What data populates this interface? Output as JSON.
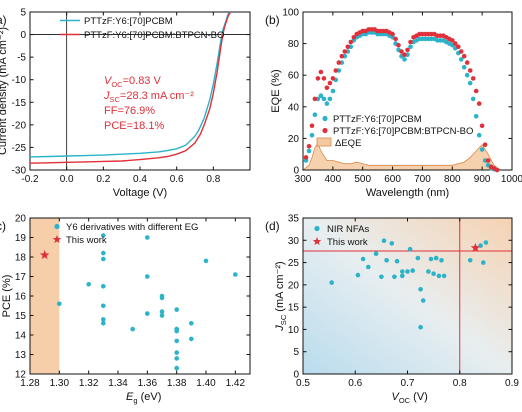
{
  "chart_data": [
    {
      "panel_label": "(a)",
      "type": "line",
      "xlabel": "Voltage (V)",
      "ylabel": "Current density (mA cm⁻²)",
      "xlim": [
        -0.2,
        1.0
      ],
      "ylim": [
        -30,
        5
      ],
      "xticks": [
        "-0.2",
        "0.0",
        "0.2",
        "0.4",
        "0.6",
        "0.8"
      ],
      "xtick_values": [
        -0.2,
        0.0,
        0.2,
        0.4,
        0.6,
        0.8
      ],
      "yticks": [
        "5",
        "0",
        "-5",
        "-10",
        "-15",
        "-20",
        "-25",
        "-30"
      ],
      "ytick_values": [
        5,
        0,
        -5,
        -10,
        -15,
        -20,
        -25,
        -30
      ],
      "legend_position": "top-right",
      "series": [
        {
          "name": "PTTzF:Y6:[70]PCBM",
          "color": "#2ab3c9",
          "x": [
            -0.2,
            -0.1,
            0.0,
            0.1,
            0.2,
            0.3,
            0.4,
            0.5,
            0.55,
            0.6,
            0.65,
            0.7,
            0.72,
            0.75,
            0.78,
            0.8,
            0.82,
            0.84,
            0.85,
            0.87,
            0.88,
            0.9
          ],
          "y": [
            -27.1,
            -27.0,
            -26.9,
            -26.8,
            -26.7,
            -26.5,
            -26.3,
            -26.0,
            -25.7,
            -25.3,
            -24.5,
            -22.5,
            -21.2,
            -18.5,
            -14.5,
            -11.0,
            -6.5,
            -1.5,
            0.8,
            3.2,
            4.5,
            5.5
          ]
        },
        {
          "name": "PTTzF:Y6:[70]PCBM:BTPCN-BO",
          "color": "#e0303a",
          "x": [
            -0.2,
            -0.1,
            0.0,
            0.1,
            0.2,
            0.3,
            0.4,
            0.5,
            0.55,
            0.6,
            0.65,
            0.7,
            0.73,
            0.75,
            0.78,
            0.8,
            0.82,
            0.84,
            0.85,
            0.86,
            0.88,
            0.9
          ],
          "y": [
            -28.5,
            -28.4,
            -28.3,
            -28.2,
            -28.1,
            -28.0,
            -27.7,
            -27.3,
            -27.0,
            -26.5,
            -25.7,
            -24.0,
            -22.0,
            -20.0,
            -16.5,
            -13.0,
            -8.5,
            -3.0,
            -0.5,
            1.5,
            4.0,
            5.5
          ]
        }
      ],
      "annotations": [
        {
          "label": "V",
          "sub": "OC",
          "value": "=0.83 V"
        },
        {
          "label": "J",
          "sub": "SC",
          "value": "=28.3 mA cm⁻²"
        },
        {
          "label": "FF",
          "sub": "",
          "value": "=76.9%"
        },
        {
          "label": "PCE",
          "sub": "",
          "value": "=18.1%"
        }
      ]
    },
    {
      "panel_label": "(b)",
      "type": "scatter",
      "xlabel": "Wavelength (nm)",
      "ylabel": "EQE (%)",
      "xlim": [
        300,
        1000
      ],
      "ylim": [
        0,
        100
      ],
      "xticks": [
        "300",
        "400",
        "500",
        "600",
        "700",
        "800",
        "900",
        "1000"
      ],
      "xtick_values": [
        300,
        400,
        500,
        600,
        700,
        800,
        900,
        1000
      ],
      "yticks": [
        "0",
        "20",
        "40",
        "60",
        "80",
        "100"
      ],
      "ytick_values": [
        0,
        20,
        40,
        60,
        80,
        100
      ],
      "legend_position": "bottom-center",
      "series": [
        {
          "name": "PTTzF:Y6:[70]PCBM",
          "color": "#2ab3c9",
          "x": [
            310,
            320,
            330,
            340,
            350,
            360,
            370,
            380,
            390,
            400,
            410,
            420,
            430,
            440,
            450,
            460,
            470,
            480,
            490,
            500,
            510,
            520,
            530,
            540,
            550,
            560,
            570,
            580,
            590,
            600,
            610,
            620,
            630,
            640,
            650,
            660,
            670,
            680,
            690,
            700,
            710,
            720,
            730,
            740,
            750,
            760,
            770,
            780,
            790,
            800,
            810,
            820,
            830,
            840,
            850,
            860,
            870,
            880,
            890,
            900,
            910,
            920,
            930,
            940,
            950
          ],
          "y": [
            6,
            12,
            22,
            35,
            45,
            47,
            45,
            42,
            45,
            50,
            57,
            63,
            68,
            72,
            75,
            78,
            82,
            84,
            85,
            86,
            86,
            87,
            87,
            87,
            86,
            86,
            86,
            86,
            85,
            84,
            80,
            76,
            72,
            70,
            73,
            78,
            81,
            82,
            83,
            83,
            83,
            83,
            83,
            83,
            82,
            82,
            82,
            81,
            80,
            79,
            77,
            74,
            70,
            65,
            60,
            55,
            45,
            34,
            22,
            13,
            6,
            3,
            1,
            0.5,
            0
          ]
        },
        {
          "name": "PTTzF:Y6:[70]PCBM:BTPCN-BO",
          "color": "#e0303a",
          "x": [
            310,
            320,
            330,
            340,
            350,
            360,
            370,
            380,
            390,
            400,
            410,
            420,
            430,
            440,
            450,
            460,
            470,
            480,
            490,
            500,
            510,
            520,
            530,
            540,
            550,
            560,
            570,
            580,
            590,
            600,
            610,
            620,
            630,
            640,
            650,
            660,
            670,
            680,
            690,
            700,
            710,
            720,
            730,
            740,
            750,
            760,
            770,
            780,
            790,
            800,
            810,
            820,
            830,
            840,
            850,
            860,
            870,
            880,
            890,
            900,
            910,
            920,
            930,
            940,
            950
          ],
          "y": [
            8,
            15,
            28,
            45,
            58,
            62,
            58,
            52,
            55,
            58,
            63,
            68,
            72,
            75,
            78,
            81,
            84,
            86,
            87,
            88,
            88,
            89,
            89,
            89,
            88,
            88,
            88,
            88,
            87,
            86,
            83,
            79,
            75,
            73,
            76,
            81,
            84,
            85,
            86,
            86,
            86,
            86,
            86,
            86,
            85,
            85,
            85,
            84,
            83,
            82,
            80,
            78,
            75,
            72,
            68,
            63,
            58,
            50,
            42,
            28,
            16,
            6,
            2,
            1,
            0
          ]
        }
      ],
      "area_series": {
        "name": "ΔEQE",
        "color": "#f5c9a0",
        "x": [
          300,
          320,
          330,
          340,
          350,
          360,
          380,
          400,
          420,
          440,
          460,
          480,
          500,
          520,
          560,
          600,
          620,
          640,
          660,
          700,
          760,
          800,
          840,
          860,
          880,
          900,
          920,
          940,
          960,
          1000
        ],
        "y": [
          0,
          3,
          8,
          14,
          17,
          12,
          6,
          6,
          5,
          4,
          4,
          5,
          4,
          3,
          3,
          3,
          3,
          3,
          3,
          3,
          3,
          3,
          5,
          8,
          12,
          16,
          10,
          3,
          0,
          0
        ]
      }
    },
    {
      "panel_label": "(c)",
      "type": "scatter",
      "xlabel": "E",
      "xlabel_sub": "g",
      "xlabel_unit": " (eV)",
      "ylabel": "PCE (%)",
      "xlim": [
        1.28,
        1.43
      ],
      "ylim": [
        12,
        20
      ],
      "xticks": [
        "1.28",
        "1.30",
        "1.32",
        "1.34",
        "1.36",
        "1.38",
        "1.40",
        "1.42"
      ],
      "xtick_values": [
        1.28,
        1.3,
        1.32,
        1.34,
        1.36,
        1.38,
        1.4,
        1.42
      ],
      "yticks": [
        "12",
        "13",
        "14",
        "15",
        "16",
        "17",
        "18",
        "19",
        "20"
      ],
      "ytick_values": [
        12,
        13,
        14,
        15,
        16,
        17,
        18,
        19,
        20
      ],
      "legend_position": "top-right",
      "shaded_region": {
        "x": [
          1.28,
          1.3
        ],
        "color": "#f5c9a0"
      },
      "series": [
        {
          "name": "Y6 derivatives with different EG",
          "color": "#2ab3c9",
          "x": [
            1.3,
            1.32,
            1.33,
            1.33,
            1.33,
            1.33,
            1.33,
            1.33,
            1.33,
            1.35,
            1.36,
            1.36,
            1.36,
            1.37,
            1.37,
            1.37,
            1.37,
            1.38,
            1.38,
            1.38,
            1.38,
            1.38,
            1.38,
            1.38,
            1.38,
            1.39,
            1.39,
            1.4,
            1.42
          ],
          "y": [
            15.6,
            16.6,
            19.1,
            18.2,
            17.9,
            16.5,
            15.5,
            14.6,
            14.8,
            14.3,
            19.0,
            17.0,
            15.1,
            16.0,
            15.9,
            15.2,
            15.0,
            14.3,
            14.2,
            13.7,
            13.1,
            12.8,
            12.3,
            15.3,
            14.3,
            13.8,
            14.6,
            17.8,
            17.1
          ]
        },
        {
          "name": "This work",
          "color": "#e0303a",
          "marker": "star",
          "x": [
            1.29
          ],
          "y": [
            18.1
          ]
        }
      ]
    },
    {
      "panel_label": "(d)",
      "type": "scatter",
      "xlabel": "V",
      "xlabel_sub": "OC",
      "xlabel_unit": " (V)",
      "ylabel": "J",
      "ylabel_sub": "SC",
      "ylabel_unit": " (mA cm⁻²)",
      "xlim": [
        0.5,
        0.9
      ],
      "ylim": [
        0,
        35
      ],
      "xticks": [
        "0.5",
        "0.6",
        "0.7",
        "0.8",
        "0.9"
      ],
      "xtick_values": [
        0.5,
        0.6,
        0.7,
        0.8,
        0.9
      ],
      "yticks": [
        "0",
        "5",
        "10",
        "15",
        "20",
        "25",
        "30",
        "35"
      ],
      "ytick_values": [
        0,
        5,
        10,
        15,
        20,
        25,
        30,
        35
      ],
      "legend_position": "top-left",
      "reference_lines": {
        "x": 0.8,
        "y": 27.6,
        "color": "#e0303a"
      },
      "series": [
        {
          "name": "NIR NFAs",
          "color": "#2ab3c9",
          "x": [
            0.555,
            0.605,
            0.615,
            0.625,
            0.64,
            0.65,
            0.655,
            0.66,
            0.67,
            0.675,
            0.68,
            0.69,
            0.69,
            0.7,
            0.705,
            0.71,
            0.72,
            0.725,
            0.725,
            0.73,
            0.74,
            0.745,
            0.75,
            0.755,
            0.76,
            0.765,
            0.77,
            0.82,
            0.84,
            0.845,
            0.85
          ],
          "y": [
            20.5,
            22.2,
            25.8,
            24.0,
            27.0,
            21.8,
            29.9,
            25.5,
            29.3,
            21.8,
            25.3,
            22.0,
            23.0,
            23.0,
            28.0,
            23.2,
            26.0,
            10.5,
            19.0,
            16.5,
            23.0,
            25.8,
            22.5,
            26.0,
            22.0,
            25.5,
            22.0,
            25.5,
            28.8,
            25.0,
            29.5
          ]
        },
        {
          "name": "This work",
          "color": "#e0303a",
          "marker": "star",
          "x": [
            0.83
          ],
          "y": [
            28.3
          ]
        }
      ]
    }
  ]
}
